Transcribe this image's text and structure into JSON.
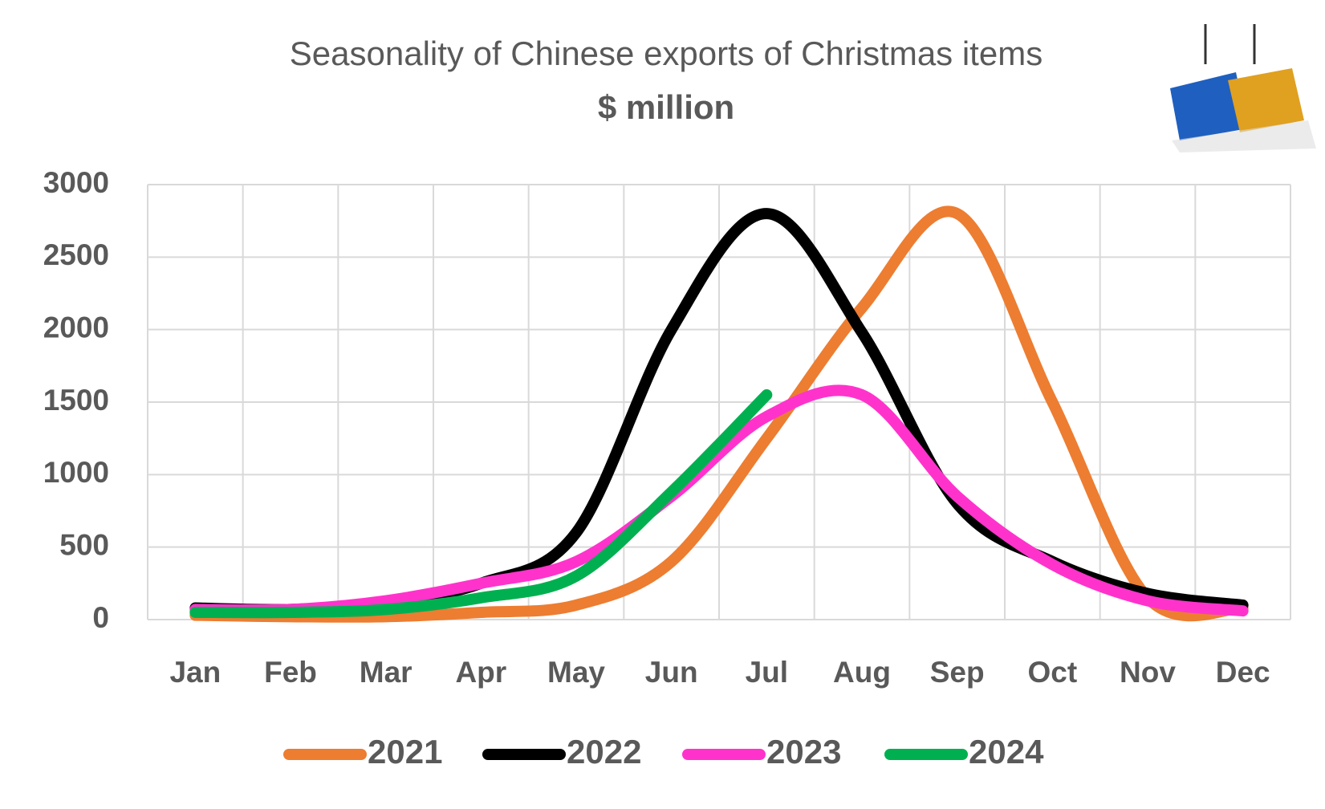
{
  "chart_data": {
    "type": "line",
    "title": "Seasonality of Chinese exports of Christmas items",
    "subtitle": "$ million",
    "categories": [
      "Jan",
      "Feb",
      "Mar",
      "Apr",
      "May",
      "Jun",
      "Jul",
      "Aug",
      "Sep",
      "Oct",
      "Nov",
      "Dec"
    ],
    "series": [
      {
        "name": "2021",
        "color": "#ed7d31",
        "values": [
          30,
          20,
          20,
          50,
          100,
          400,
          1250,
          2150,
          2800,
          1500,
          150,
          80
        ]
      },
      {
        "name": "2022",
        "color": "#000000",
        "values": [
          80,
          70,
          120,
          250,
          600,
          2000,
          2800,
          1980,
          800,
          400,
          180,
          100
        ]
      },
      {
        "name": "2023",
        "color": "#ff33cc",
        "values": [
          70,
          70,
          130,
          250,
          400,
          850,
          1400,
          1550,
          850,
          380,
          130,
          60
        ]
      },
      {
        "name": "2024",
        "color": "#00b050",
        "values": [
          50,
          50,
          70,
          150,
          300,
          880,
          1550,
          null,
          null,
          null,
          null,
          null
        ]
      }
    ],
    "ylim": [
      0,
      3000
    ],
    "yticks": [
      0,
      500,
      1000,
      1500,
      2000,
      2500,
      3000
    ],
    "grid": true,
    "legend": "bottom"
  }
}
